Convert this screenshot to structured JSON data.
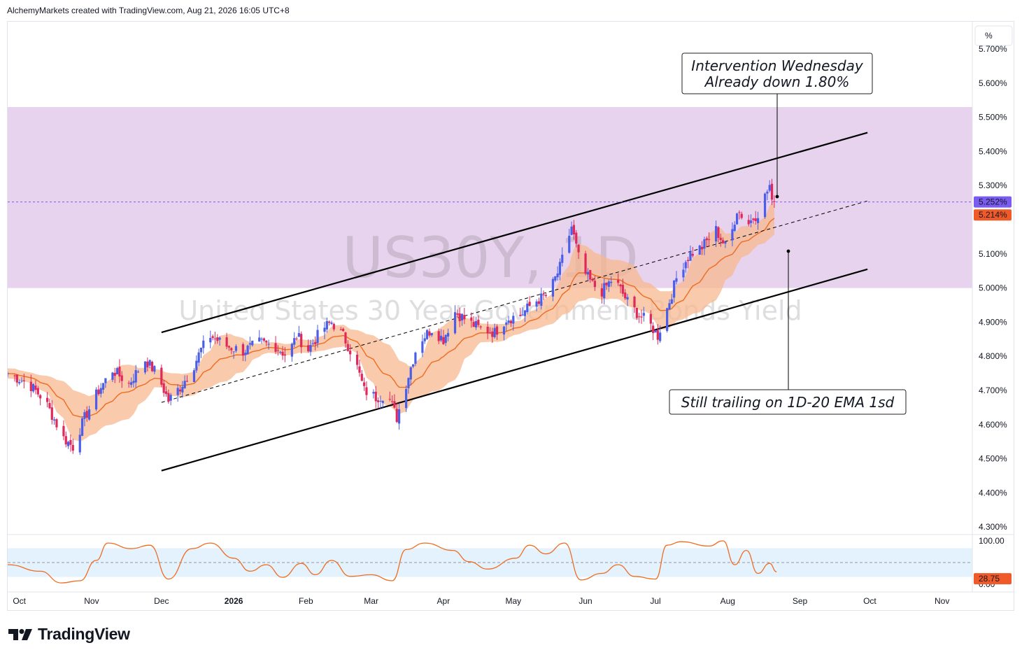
{
  "header": {
    "text": "AlchemyMarkets created with TradingView.com, Aug 21, 2026 16:05 UTC+8"
  },
  "logo": {
    "text": "TradingView"
  },
  "chart_data": {
    "type": "candlestick",
    "symbol": "US30Y, 1D",
    "instrument": "United States 30 Year Government Bonds Yield",
    "currency_button": "%",
    "y_ticks": [
      "5.700%",
      "5.600%",
      "5.500%",
      "5.400%",
      "5.300%",
      "5.100%",
      "5.000%",
      "4.900%",
      "4.800%",
      "4.700%",
      "4.600%",
      "4.500%",
      "4.400%",
      "4.300%"
    ],
    "y_range": [
      4.28,
      5.78
    ],
    "x_labels": [
      "Oct",
      "Nov",
      "Dec",
      "2026",
      "Feb",
      "Mar",
      "Apr",
      "May",
      "Jun",
      "Jul",
      "Aug",
      "Sep",
      "Oct",
      "Nov"
    ],
    "x_range": [
      "2025-09-26",
      "2026-11-14"
    ],
    "last_price": "5.252%",
    "ema_value": "5.214%",
    "resistance_zone": [
      5.0,
      5.53
    ],
    "channel": {
      "upper": [
        [
          "2025-12-01",
          4.87
        ],
        [
          "2026-09-30",
          5.455
        ]
      ],
      "lower": [
        [
          "2025-12-01",
          4.465
        ],
        [
          "2026-09-30",
          5.055
        ]
      ],
      "mid": [
        [
          "2025-12-01",
          4.665
        ],
        [
          "2026-09-30",
          5.255
        ]
      ]
    },
    "annotations": [
      {
        "lines": [
          "Intervention Wednesday",
          "Already down 1.80%"
        ]
      },
      {
        "lines": [
          "Still trailing on 1D-20 EMA 1sd"
        ]
      }
    ],
    "anchors": [
      [
        "2025-09-26",
        4.75
      ],
      [
        "2025-10-05",
        4.72
      ],
      [
        "2025-10-12",
        4.67
      ],
      [
        "2025-10-20",
        4.56
      ],
      [
        "2025-10-24",
        4.535
      ],
      [
        "2025-10-29",
        4.62
      ],
      [
        "2025-11-04",
        4.7
      ],
      [
        "2025-11-10",
        4.76
      ],
      [
        "2025-11-17",
        4.72
      ],
      [
        "2025-11-24",
        4.79
      ],
      [
        "2025-11-29",
        4.75
      ],
      [
        "2025-12-04",
        4.67
      ],
      [
        "2025-12-09",
        4.71
      ],
      [
        "2025-12-14",
        4.76
      ],
      [
        "2025-12-18",
        4.82
      ],
      [
        "2025-12-22",
        4.86
      ],
      [
        "2025-12-29",
        4.83
      ],
      [
        "2026-01-05",
        4.815
      ],
      [
        "2026-01-12",
        4.84
      ],
      [
        "2026-01-19",
        4.83
      ],
      [
        "2026-01-24",
        4.8
      ],
      [
        "2026-01-28",
        4.86
      ],
      [
        "2026-02-02",
        4.82
      ],
      [
        "2026-02-08",
        4.88
      ],
      [
        "2026-02-12",
        4.9
      ],
      [
        "2026-02-17",
        4.86
      ],
      [
        "2026-02-22",
        4.79
      ],
      [
        "2026-02-26",
        4.7
      ],
      [
        "2026-03-03",
        4.68
      ],
      [
        "2026-03-08",
        4.69
      ],
      [
        "2026-03-12",
        4.62
      ],
      [
        "2026-03-16",
        4.72
      ],
      [
        "2026-03-21",
        4.84
      ],
      [
        "2026-03-27",
        4.88
      ],
      [
        "2026-04-01",
        4.85
      ],
      [
        "2026-04-06",
        4.93
      ],
      [
        "2026-04-12",
        4.9
      ],
      [
        "2026-04-17",
        4.88
      ],
      [
        "2026-04-23",
        4.87
      ],
      [
        "2026-04-28",
        4.91
      ],
      [
        "2026-05-04",
        4.92
      ],
      [
        "2026-05-10",
        4.96
      ],
      [
        "2026-05-16",
        4.98
      ],
      [
        "2026-05-21",
        5.06
      ],
      [
        "2026-05-26",
        5.18
      ],
      [
        "2026-05-30",
        5.06
      ],
      [
        "2026-06-04",
        5.01
      ],
      [
        "2026-06-08",
        4.99
      ],
      [
        "2026-06-13",
        5.03
      ],
      [
        "2026-06-19",
        4.96
      ],
      [
        "2026-06-24",
        4.92
      ],
      [
        "2026-06-28",
        4.9
      ],
      [
        "2026-07-02",
        4.86
      ],
      [
        "2026-07-06",
        4.94
      ],
      [
        "2026-07-11",
        5.05
      ],
      [
        "2026-07-16",
        5.1
      ],
      [
        "2026-07-21",
        5.12
      ],
      [
        "2026-07-27",
        5.17
      ],
      [
        "2026-08-01",
        5.11
      ],
      [
        "2026-08-05",
        5.23
      ],
      [
        "2026-08-10",
        5.19
      ],
      [
        "2026-08-14",
        5.22
      ],
      [
        "2026-08-19",
        5.3
      ],
      [
        "2026-08-21",
        5.19
      ],
      [
        "2026-08-22",
        5.25
      ]
    ],
    "oscillator": {
      "ticks": [
        "100.00",
        "0.00"
      ],
      "last_value": "28.75",
      "band": [
        20,
        80
      ],
      "anchors": [
        [
          "2025-09-26",
          45
        ],
        [
          "2025-10-10",
          30
        ],
        [
          "2025-10-19",
          3
        ],
        [
          "2025-10-27",
          8
        ],
        [
          "2025-11-03",
          55
        ],
        [
          "2025-11-08",
          95
        ],
        [
          "2025-11-18",
          82
        ],
        [
          "2025-11-26",
          90
        ],
        [
          "2025-12-04",
          12
        ],
        [
          "2025-12-14",
          82
        ],
        [
          "2025-12-22",
          95
        ],
        [
          "2026-01-01",
          60
        ],
        [
          "2026-01-08",
          30
        ],
        [
          "2026-01-15",
          45
        ],
        [
          "2026-01-22",
          16
        ],
        [
          "2026-01-30",
          48
        ],
        [
          "2026-02-05",
          22
        ],
        [
          "2026-02-12",
          55
        ],
        [
          "2026-02-20",
          18
        ],
        [
          "2026-03-01",
          22
        ],
        [
          "2026-03-10",
          8
        ],
        [
          "2026-03-16",
          80
        ],
        [
          "2026-03-24",
          95
        ],
        [
          "2026-04-05",
          78
        ],
        [
          "2026-04-12",
          52
        ],
        [
          "2026-04-20",
          35
        ],
        [
          "2026-05-02",
          60
        ],
        [
          "2026-05-08",
          90
        ],
        [
          "2026-05-15",
          70
        ],
        [
          "2026-05-23",
          95
        ],
        [
          "2026-05-30",
          10
        ],
        [
          "2026-06-08",
          25
        ],
        [
          "2026-06-15",
          45
        ],
        [
          "2026-06-22",
          18
        ],
        [
          "2026-07-01",
          12
        ],
        [
          "2026-07-06",
          90
        ],
        [
          "2026-07-12",
          98
        ],
        [
          "2026-07-24",
          88
        ],
        [
          "2026-07-30",
          100
        ],
        [
          "2026-08-04",
          45
        ],
        [
          "2026-08-09",
          78
        ],
        [
          "2026-08-14",
          25
        ],
        [
          "2026-08-19",
          48
        ],
        [
          "2026-08-22",
          28.75
        ]
      ]
    }
  }
}
